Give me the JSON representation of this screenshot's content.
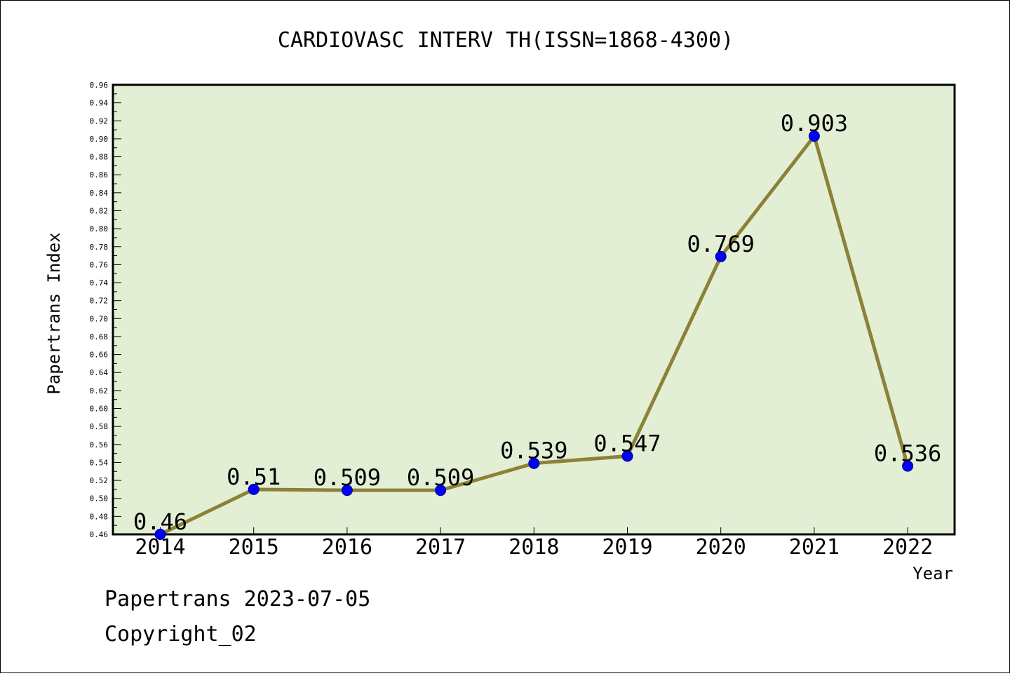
{
  "chart_data": {
    "type": "line",
    "title": "CARDIOVASC INTERV TH(ISSN=1868-4300)",
    "xlabel": "Year",
    "ylabel": "Papertrans Index",
    "categories": [
      "2014",
      "2015",
      "2016",
      "2017",
      "2018",
      "2019",
      "2020",
      "2021",
      "2022"
    ],
    "values": [
      0.46,
      0.51,
      0.509,
      0.509,
      0.539,
      0.547,
      0.769,
      0.903,
      0.536
    ],
    "data_labels": [
      "0.46",
      "0.51",
      "0.509",
      "0.509",
      "0.539",
      "0.547",
      "0.769",
      "0.903",
      "0.536"
    ],
    "ylim": [
      0.46,
      0.96
    ],
    "y_ticks": [
      "0.46",
      "0.48",
      "0.50",
      "0.52",
      "0.54",
      "0.56",
      "0.58",
      "0.60",
      "0.62",
      "0.64",
      "0.66",
      "0.68",
      "0.70",
      "0.72",
      "0.74",
      "0.76",
      "0.78",
      "0.80",
      "0.82",
      "0.84",
      "0.86",
      "0.88",
      "0.90",
      "0.92",
      "0.94",
      "0.96"
    ],
    "grid": false,
    "colors": {
      "plot_background": "#e2efd5",
      "line": "#8b8237",
      "marker": "#0000ff"
    }
  },
  "footer": {
    "line1": "Papertrans 2023-07-05",
    "line2": "Copyright_02"
  }
}
